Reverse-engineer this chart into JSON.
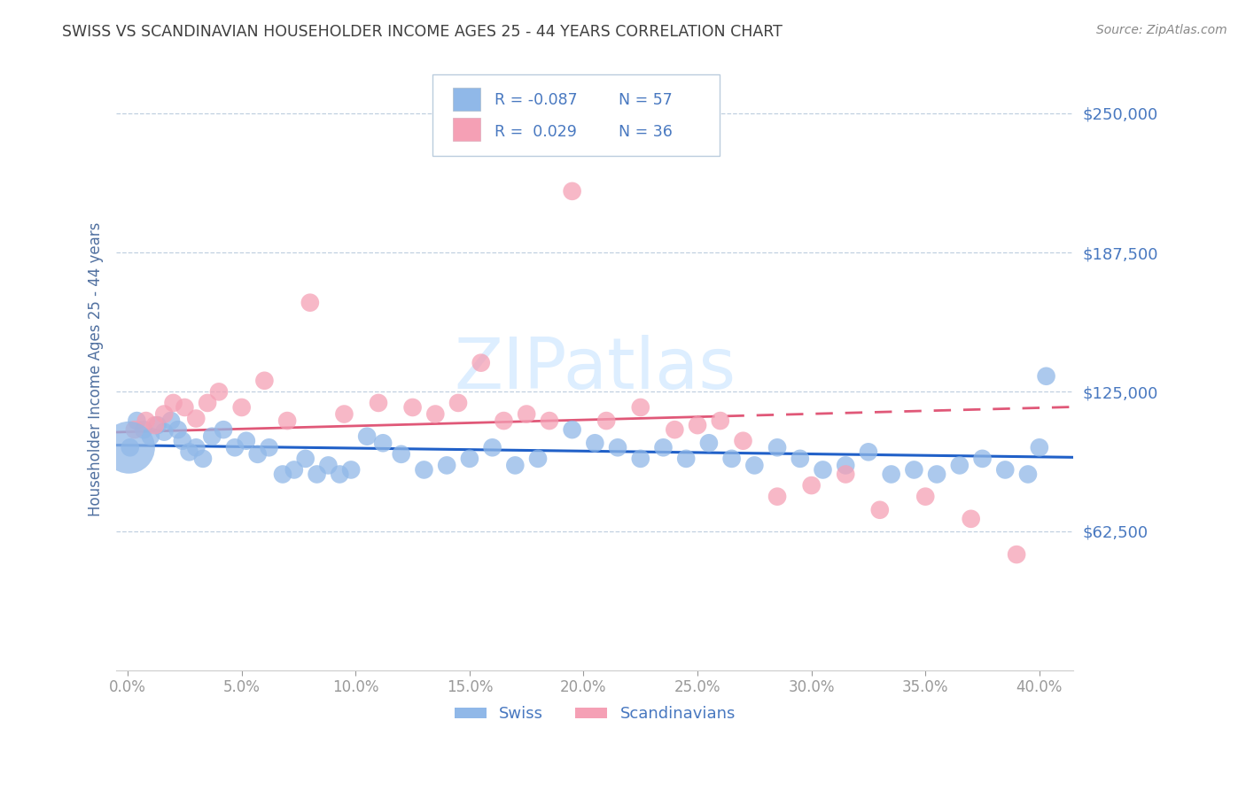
{
  "title": "SWISS VS SCANDINAVIAN HOUSEHOLDER INCOME AGES 25 - 44 YEARS CORRELATION CHART",
  "source": "Source: ZipAtlas.com",
  "ylabel": "Householder Income Ages 25 - 44 years",
  "ytick_labels": [
    "$62,500",
    "$125,000",
    "$187,500",
    "$250,000"
  ],
  "ytick_vals": [
    62500,
    125000,
    187500,
    250000
  ],
  "ylim": [
    0,
    270000
  ],
  "xlim": [
    -0.5,
    41.5
  ],
  "xtick_vals": [
    0,
    5,
    10,
    15,
    20,
    25,
    30,
    35,
    40
  ],
  "xtick_labels": [
    "0.0%",
    "5.0%",
    "10.0%",
    "15.0%",
    "20.0%",
    "25.0%",
    "30.0%",
    "35.0%",
    "40.0%"
  ],
  "swiss_color": "#90b8e8",
  "scand_color": "#f5a0b5",
  "swiss_line_color": "#2060c8",
  "scand_line_color": "#e05878",
  "background_color": "#ffffff",
  "grid_color": "#c0d0e0",
  "title_color": "#404040",
  "axis_label_color": "#5070a0",
  "tick_label_color": "#4878c0",
  "watermark_color": "#ddeeff",
  "swiss_intercept": 101000,
  "swiss_slope": -130,
  "scand_intercept": 107000,
  "scand_slope": 270,
  "swiss_x": [
    0.1,
    0.4,
    0.7,
    1.0,
    1.3,
    1.6,
    1.9,
    2.2,
    2.4,
    2.7,
    3.0,
    3.3,
    3.7,
    4.2,
    4.7,
    5.2,
    5.7,
    6.2,
    6.8,
    7.3,
    7.8,
    8.3,
    8.8,
    9.3,
    9.8,
    10.5,
    11.2,
    12.0,
    13.0,
    14.0,
    15.0,
    16.0,
    17.0,
    18.0,
    19.5,
    20.5,
    21.5,
    22.5,
    23.5,
    24.5,
    25.5,
    26.5,
    27.5,
    28.5,
    29.5,
    30.5,
    31.5,
    32.5,
    33.5,
    34.5,
    35.5,
    36.5,
    37.5,
    38.5,
    39.5,
    40.0,
    40.3
  ],
  "swiss_y": [
    100000,
    112000,
    108000,
    105000,
    110000,
    107000,
    112000,
    108000,
    103000,
    98000,
    100000,
    95000,
    105000,
    108000,
    100000,
    103000,
    97000,
    100000,
    88000,
    90000,
    95000,
    88000,
    92000,
    88000,
    90000,
    105000,
    102000,
    97000,
    90000,
    92000,
    95000,
    100000,
    92000,
    95000,
    108000,
    102000,
    100000,
    95000,
    100000,
    95000,
    102000,
    95000,
    92000,
    100000,
    95000,
    90000,
    92000,
    98000,
    88000,
    90000,
    88000,
    92000,
    95000,
    90000,
    88000,
    100000,
    132000
  ],
  "swiss_large_x": 0.05,
  "swiss_large_y": 100000,
  "scand_x": [
    0.3,
    0.8,
    1.2,
    1.6,
    2.0,
    2.5,
    3.0,
    3.5,
    4.0,
    5.0,
    6.0,
    7.0,
    8.0,
    9.5,
    11.0,
    12.5,
    13.5,
    14.5,
    15.5,
    16.5,
    17.5,
    18.5,
    19.5,
    21.0,
    22.5,
    24.0,
    25.0,
    26.0,
    27.0,
    28.5,
    30.0,
    31.5,
    33.0,
    35.0,
    37.0,
    39.0
  ],
  "scand_y": [
    108000,
    112000,
    110000,
    115000,
    120000,
    118000,
    113000,
    120000,
    125000,
    118000,
    130000,
    112000,
    165000,
    115000,
    120000,
    118000,
    115000,
    120000,
    138000,
    112000,
    115000,
    112000,
    215000,
    112000,
    118000,
    108000,
    110000,
    112000,
    103000,
    78000,
    83000,
    88000,
    72000,
    78000,
    68000,
    52000
  ]
}
